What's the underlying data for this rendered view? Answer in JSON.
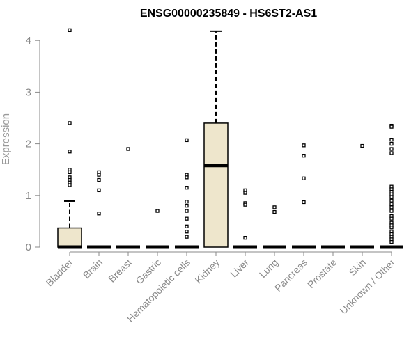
{
  "chart_data": {
    "type": "boxplot",
    "title": "ENSG00000235849 - HS6ST2-AS1",
    "xlabel": "",
    "ylabel": "Expression",
    "ylim": [
      0,
      4.3
    ],
    "yticks": [
      0,
      1,
      2,
      3,
      4
    ],
    "grid": false,
    "box_color": "#EEE6CC",
    "categories": [
      "Bladder",
      "Brain",
      "Breast",
      "Gastric",
      "Hematopoietic cells",
      "Kidney",
      "Liver",
      "Lung",
      "Pancreas",
      "Prostate",
      "Skin",
      "Unknown / Other"
    ],
    "boxes": [
      {
        "q1": 0,
        "median": 0,
        "q3": 0.37,
        "whisker_low": 0,
        "whisker_high": 0.89,
        "outliers": [
          4.2,
          2.4,
          1.85,
          1.5,
          1.45,
          1.35,
          1.3,
          1.25,
          1.2
        ]
      },
      {
        "q1": 0,
        "median": 0,
        "q3": 0,
        "whisker_low": 0,
        "whisker_high": 0,
        "outliers": [
          1.45,
          1.4,
          1.3,
          1.1,
          0.65
        ]
      },
      {
        "q1": 0,
        "median": 0,
        "q3": 0,
        "whisker_low": 0,
        "whisker_high": 0,
        "outliers": [
          1.9
        ]
      },
      {
        "q1": 0,
        "median": 0,
        "q3": 0,
        "whisker_low": 0,
        "whisker_high": 0,
        "outliers": [
          0.7
        ]
      },
      {
        "q1": 0,
        "median": 0,
        "q3": 0,
        "whisker_low": 0,
        "whisker_high": 0,
        "outliers": [
          2.07,
          1.4,
          1.35,
          1.15,
          0.88,
          0.8,
          0.7,
          0.55,
          0.4,
          0.3,
          0.2
        ]
      },
      {
        "q1": 0,
        "median": 1.58,
        "q3": 2.4,
        "whisker_low": 0,
        "whisker_high": 4.18,
        "outliers": []
      },
      {
        "q1": 0,
        "median": 0,
        "q3": 0,
        "whisker_low": 0,
        "whisker_high": 0,
        "outliers": [
          1.1,
          1.05,
          0.85,
          0.82,
          0.18
        ]
      },
      {
        "q1": 0,
        "median": 0,
        "q3": 0,
        "whisker_low": 0,
        "whisker_high": 0,
        "outliers": [
          0.77,
          0.68
        ]
      },
      {
        "q1": 0,
        "median": 0,
        "q3": 0,
        "whisker_low": 0,
        "whisker_high": 0,
        "outliers": [
          1.97,
          1.77,
          1.33,
          0.87
        ]
      },
      {
        "q1": 0,
        "median": 0,
        "q3": 0,
        "whisker_low": 0,
        "whisker_high": 0,
        "outliers": []
      },
      {
        "q1": 0,
        "median": 0,
        "q3": 0,
        "whisker_low": 0,
        "whisker_high": 0,
        "outliers": [
          1.96
        ]
      },
      {
        "q1": 0,
        "median": 0,
        "q3": 0,
        "whisker_low": 0,
        "whisker_high": 0,
        "outliers": [
          2.35,
          2.33,
          2.08,
          2.0,
          1.9,
          1.82,
          1.17,
          1.12,
          1.07,
          1.02,
          0.97,
          0.9,
          0.83,
          0.77,
          0.7,
          0.6,
          0.55,
          0.47,
          0.42,
          0.38,
          0.3,
          0.25,
          0.2,
          0.15,
          0.1
        ]
      }
    ]
  }
}
